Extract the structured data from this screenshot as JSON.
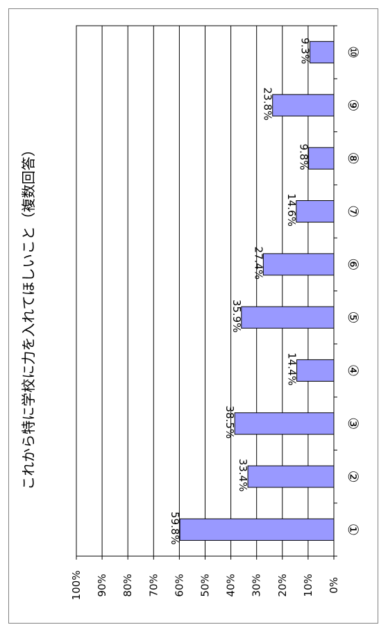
{
  "chart_data": {
    "type": "bar",
    "orientation": "horizontal",
    "title": "これから特に学校に力を入れてほしいこと（複数回答）",
    "categories": [
      "①",
      "②",
      "③",
      "④",
      "⑤",
      "⑥",
      "⑦",
      "⑧",
      "⑨",
      "⑩"
    ],
    "values": [
      59.8,
      33.4,
      38.5,
      14.4,
      35.9,
      27.4,
      14.6,
      9.8,
      23.8,
      9.3
    ],
    "value_labels": [
      "59.8%",
      "33.4%",
      "38.5%",
      "14.4%",
      "35.9%",
      "27.4%",
      "14.6%",
      "9.8%",
      "23.8%",
      "9.3%"
    ],
    "ticks": [
      "0%",
      "10%",
      "20%",
      "30%",
      "40%",
      "50%",
      "60%",
      "70%",
      "80%",
      "90%",
      "100%"
    ],
    "xlim": [
      0,
      100
    ],
    "grid": true,
    "colors": {
      "bar": "#9999ff",
      "bar_stroke": "#000000",
      "grid": "#000000"
    }
  }
}
